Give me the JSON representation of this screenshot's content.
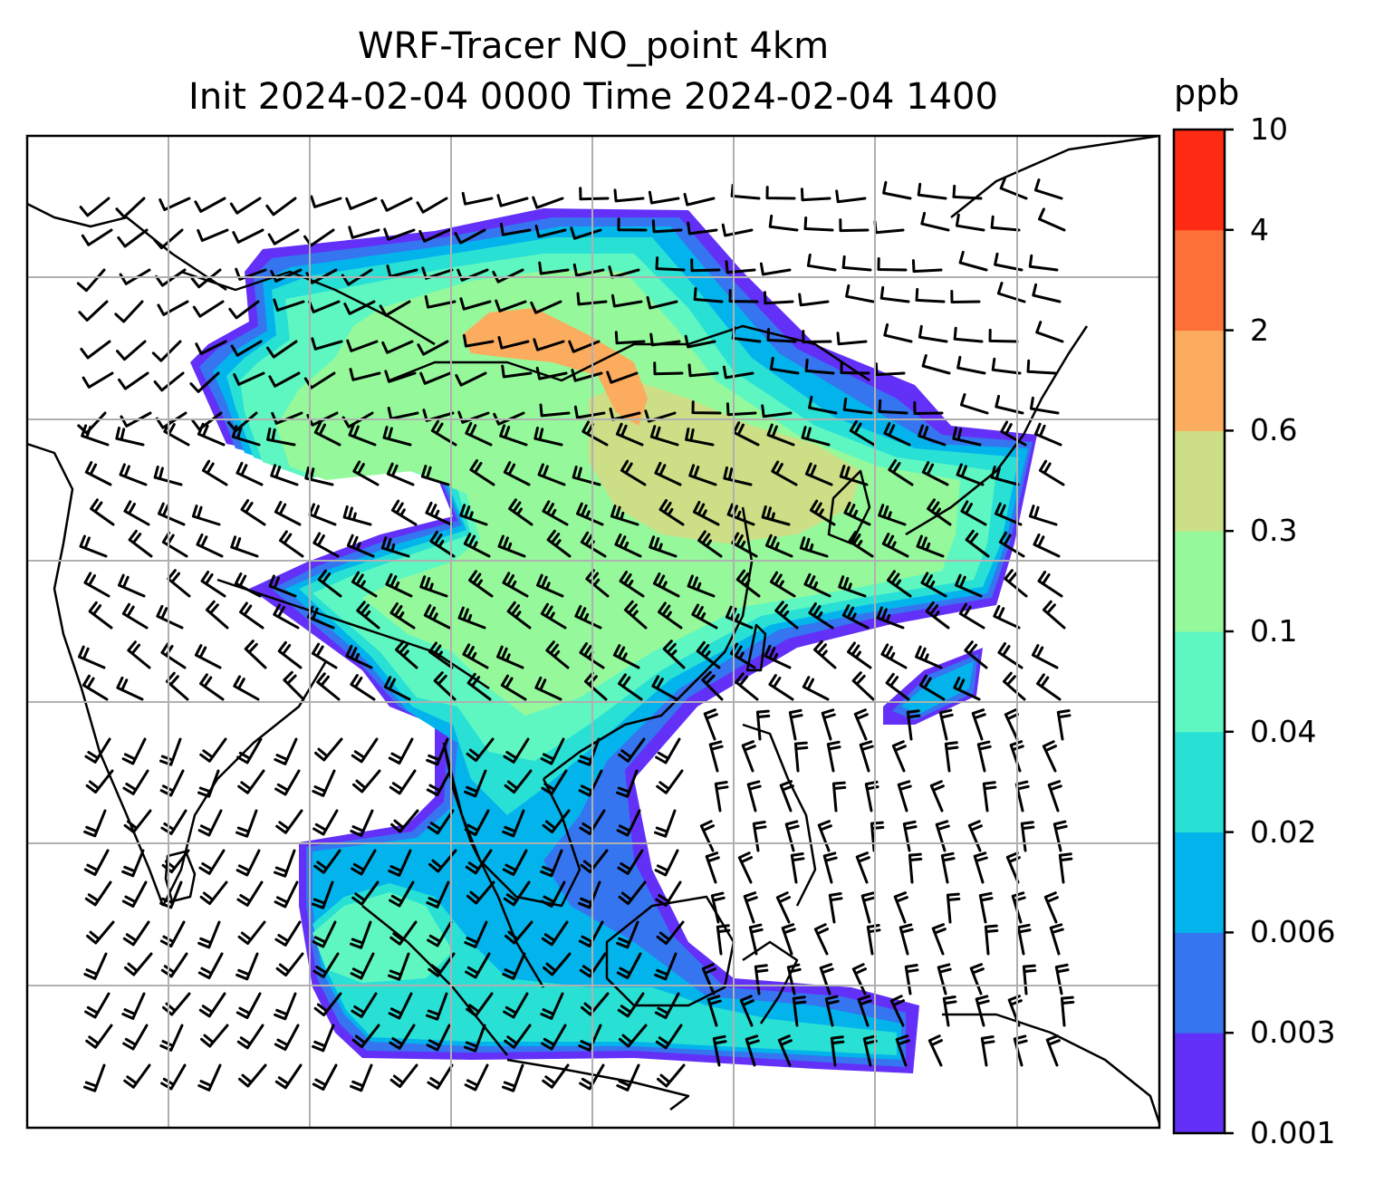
{
  "title": {
    "line1": "WRF-Tracer NO_point 4km",
    "line2": "Init 2024-02-04 0000 Time 2024-02-04 1400"
  },
  "colorbar": {
    "unit": "ppb",
    "ticks": [
      "0.001",
      "0.003",
      "0.006",
      "0.02",
      "0.04",
      "0.1",
      "0.3",
      "0.6",
      "2",
      "4",
      "10"
    ],
    "colors": [
      "#6330f8",
      "#3575f0",
      "#03b4ec",
      "#29e0d5",
      "#5ff7c1",
      "#95f99b",
      "#ccde86",
      "#fcac5e",
      "#fd7138",
      "#ff2a14"
    ]
  },
  "map": {
    "domain_outline": "#000000",
    "coastline_color": "#000000",
    "grid_color": "#b0b0b0",
    "barb_color": "#000000"
  }
}
